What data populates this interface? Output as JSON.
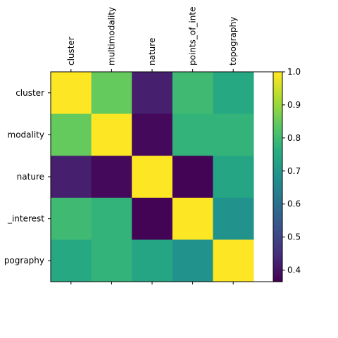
{
  "chart_data": {
    "type": "heatmap",
    "title": "",
    "xlabel": "",
    "ylabel": "",
    "x_tick_labels": [
      "cluster",
      "multimodality",
      "nature",
      "points_of_inte",
      "topography"
    ],
    "y_tick_labels": [
      "cluster",
      "modality",
      "nature",
      "_interest",
      "pography"
    ],
    "categories": [
      "cluster",
      "multimodality",
      "nature",
      "points_of_interest",
      "topography"
    ],
    "values": [
      [
        1.0,
        0.85,
        0.42,
        0.8,
        0.75
      ],
      [
        0.85,
        1.0,
        0.38,
        0.78,
        0.78
      ],
      [
        0.42,
        0.38,
        1.0,
        0.37,
        0.74
      ],
      [
        0.8,
        0.78,
        0.37,
        1.0,
        0.69
      ],
      [
        0.75,
        0.78,
        0.74,
        0.69,
        1.0
      ]
    ],
    "colormap": "viridis",
    "colorbar": {
      "range": [
        0.365,
        1.0
      ],
      "ticks": [
        0.4,
        0.5,
        0.6,
        0.7,
        0.8,
        0.9,
        1.0
      ],
      "tick_labels": [
        "0.4",
        "0.5",
        "0.6",
        "0.7",
        "0.8",
        "0.9",
        "1.0"
      ]
    },
    "grid": false,
    "x_ticks_position": "top"
  }
}
